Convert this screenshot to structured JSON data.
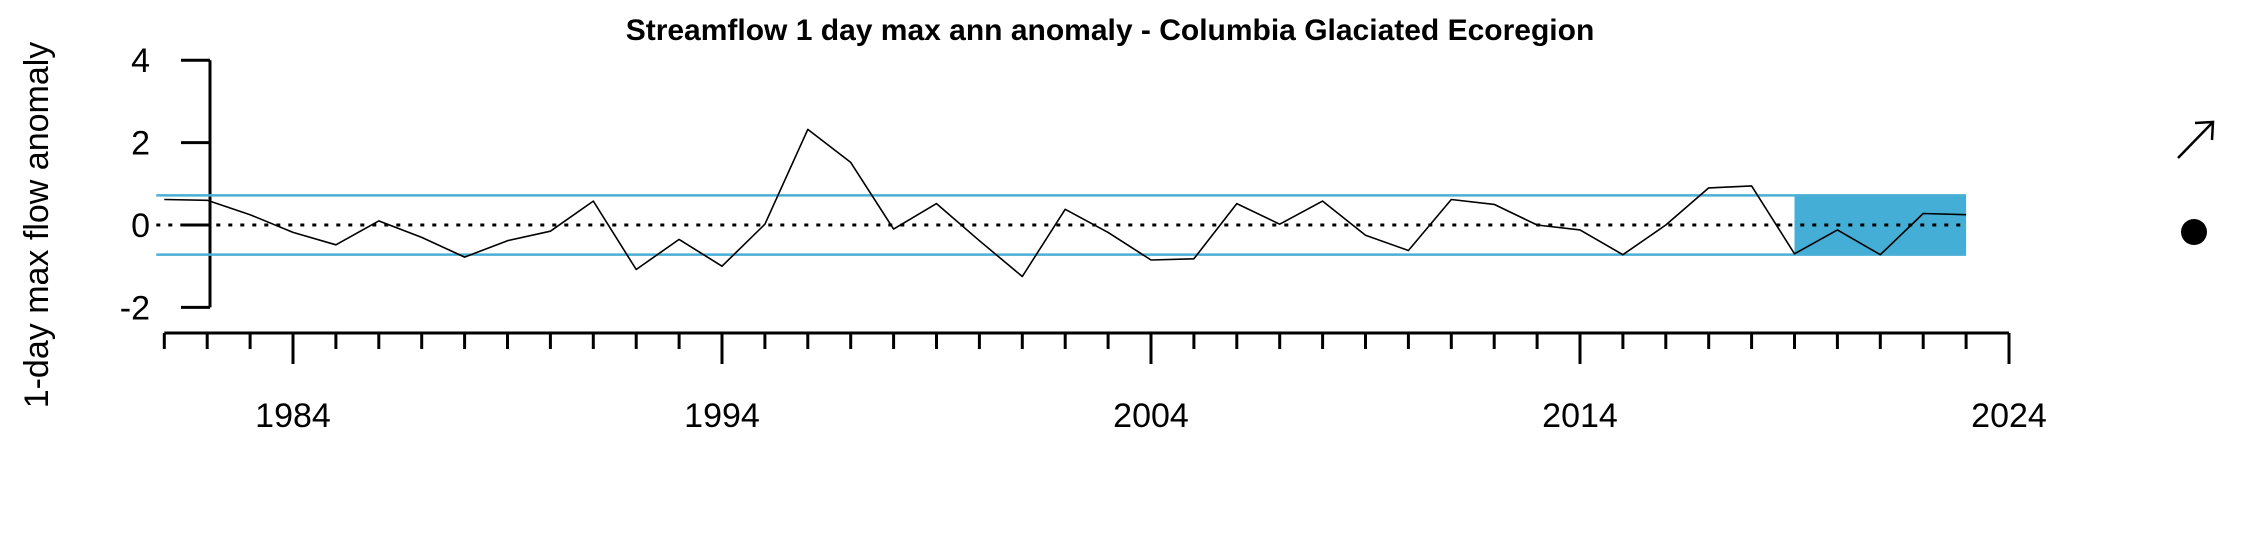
{
  "chart_data": {
    "type": "line",
    "title": "Streamflow 1 day max ann anomaly - Columbia Glaciated Ecoregion",
    "ylabel": "1-day max flow anomaly",
    "xlabel": "",
    "ylim": [
      -2,
      4
    ],
    "yticks": [
      -2,
      0,
      2,
      4
    ],
    "xlim": [
      1980.5,
      2024
    ],
    "xticks_labeled": [
      1984,
      1994,
      2004,
      2014,
      2024
    ],
    "x": [
      1981,
      1982,
      1983,
      1984,
      1985,
      1986,
      1987,
      1988,
      1989,
      1990,
      1991,
      1992,
      1993,
      1994,
      1995,
      1996,
      1997,
      1998,
      1999,
      2000,
      2001,
      2002,
      2003,
      2004,
      2005,
      2006,
      2007,
      2008,
      2009,
      2010,
      2011,
      2012,
      2013,
      2014,
      2015,
      2016,
      2017,
      2018,
      2019,
      2020,
      2021,
      2022,
      2023
    ],
    "series": [
      {
        "values": [
          0.62,
          0.6,
          0.25,
          -0.18,
          -0.48,
          0.1,
          -0.3,
          -0.78,
          -0.38,
          -0.15,
          0.58,
          -1.08,
          -0.35,
          -1.0,
          0.02,
          2.32,
          1.52,
          -0.1,
          0.52,
          -0.38,
          -1.25,
          0.38,
          -0.18,
          -0.85,
          -0.82,
          0.52,
          0.02,
          0.58,
          -0.25,
          -0.62,
          0.62,
          0.5,
          0.0,
          -0.12,
          -0.72,
          0.0,
          0.9,
          0.95,
          -0.7,
          -0.12,
          -0.72,
          0.28,
          0.25
        ],
        "color": "#000000"
      }
    ],
    "reference_lines": {
      "zero": 0,
      "upper_band": 0.72,
      "lower_band": -0.72,
      "band_color": "#4aafd5"
    },
    "shaded_region": {
      "x_start": 2019,
      "x_end": 2023,
      "y_low": -0.72,
      "y_high": 0.72,
      "color": "#45aed6"
    },
    "markers": {
      "trend": "up-right-arrow",
      "recent_status": "filled-circle"
    },
    "grid": false,
    "legend": "none"
  }
}
